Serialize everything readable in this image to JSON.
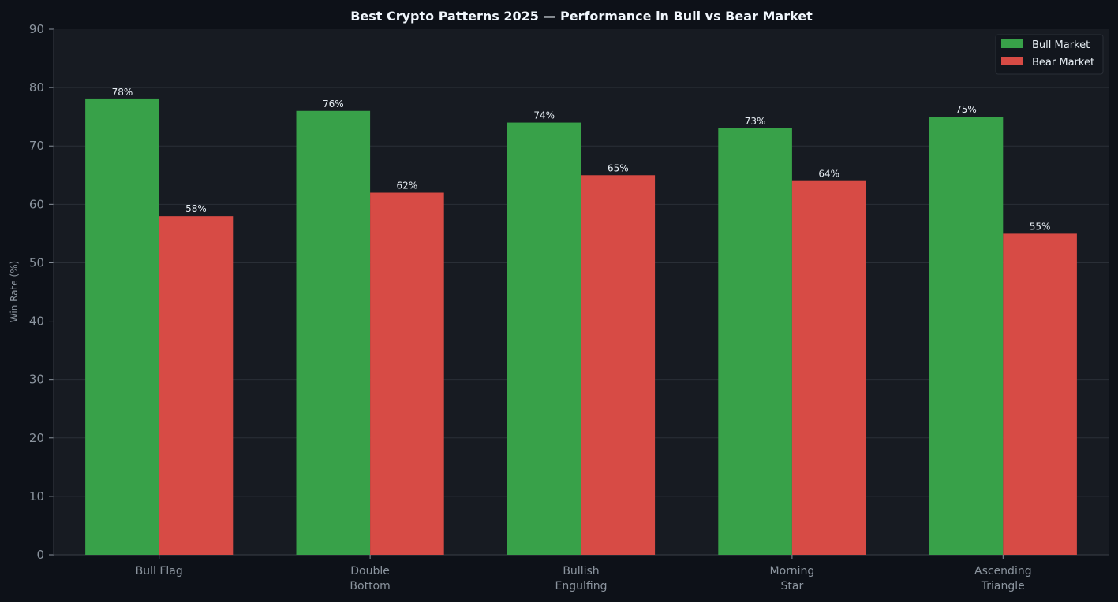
{
  "chart_data": {
    "type": "bar",
    "title": "Best Crypto Patterns 2025 — Performance in Bull vs Bear Market",
    "xlabel": "",
    "ylabel": "Win Rate (%)",
    "ylim": [
      0,
      90
    ],
    "yticks": [
      0,
      10,
      20,
      30,
      40,
      50,
      60,
      70,
      80,
      90
    ],
    "categories": [
      [
        "Bull Flag"
      ],
      [
        "Double",
        "Bottom"
      ],
      [
        "Bullish",
        "Engulfing"
      ],
      [
        "Morning",
        "Star"
      ],
      [
        "Ascending",
        "Triangle"
      ]
    ],
    "series": [
      {
        "name": "Bull Market",
        "color": "#38a149",
        "values": [
          78,
          76,
          74,
          73,
          75
        ]
      },
      {
        "name": "Bear Market",
        "color": "#d74b45",
        "values": [
          58,
          62,
          65,
          64,
          55
        ]
      }
    ],
    "value_suffix": "%",
    "grid": true,
    "legend_position": "top-right",
    "colors": {
      "background": "#0d1118",
      "plot_background": "#171b22",
      "grid": "#2a2f37",
      "text": "#8b949e"
    }
  }
}
